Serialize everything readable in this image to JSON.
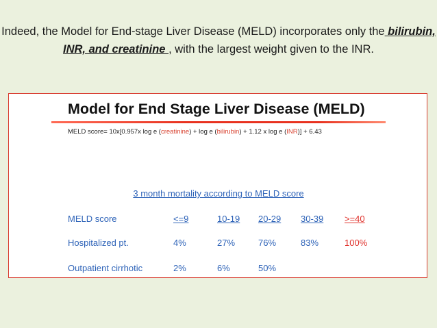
{
  "caption": {
    "pre": "Indeed, the Model for End-stage Liver Disease (MELD) incorporates only the",
    "emphasis": " bilirubin, INR, and creatinine ",
    "post": ", with the largest weight given to the INR."
  },
  "card": {
    "title": "Model for End Stage Liver Disease (MELD)",
    "formula": {
      "p1": "MELD score= 10x[0.957x log e (",
      "t1": "creatinine",
      "p2": ") + log e (",
      "t2": "bilirubin",
      "p3": ") + 1.12 x log e (",
      "t3": "INR",
      "p4": ")] + 6.43"
    },
    "table_title": "3 month mortality according to MELD score",
    "table": {
      "header": [
        "MELD score",
        "<=9",
        "10-19",
        "20-29",
        "30-39",
        ">=40"
      ],
      "rows": [
        [
          "Hospitalized pt.",
          "4%",
          "27%",
          "76%",
          "83%",
          "100%"
        ],
        [
          "Outpatient cirrhotic",
          "2%",
          "6%",
          "50%",
          "",
          ""
        ]
      ]
    },
    "colors": {
      "accent_red": "#e0322c",
      "table_blue": "#2e63b8",
      "page_background": "#ebf1de"
    }
  }
}
